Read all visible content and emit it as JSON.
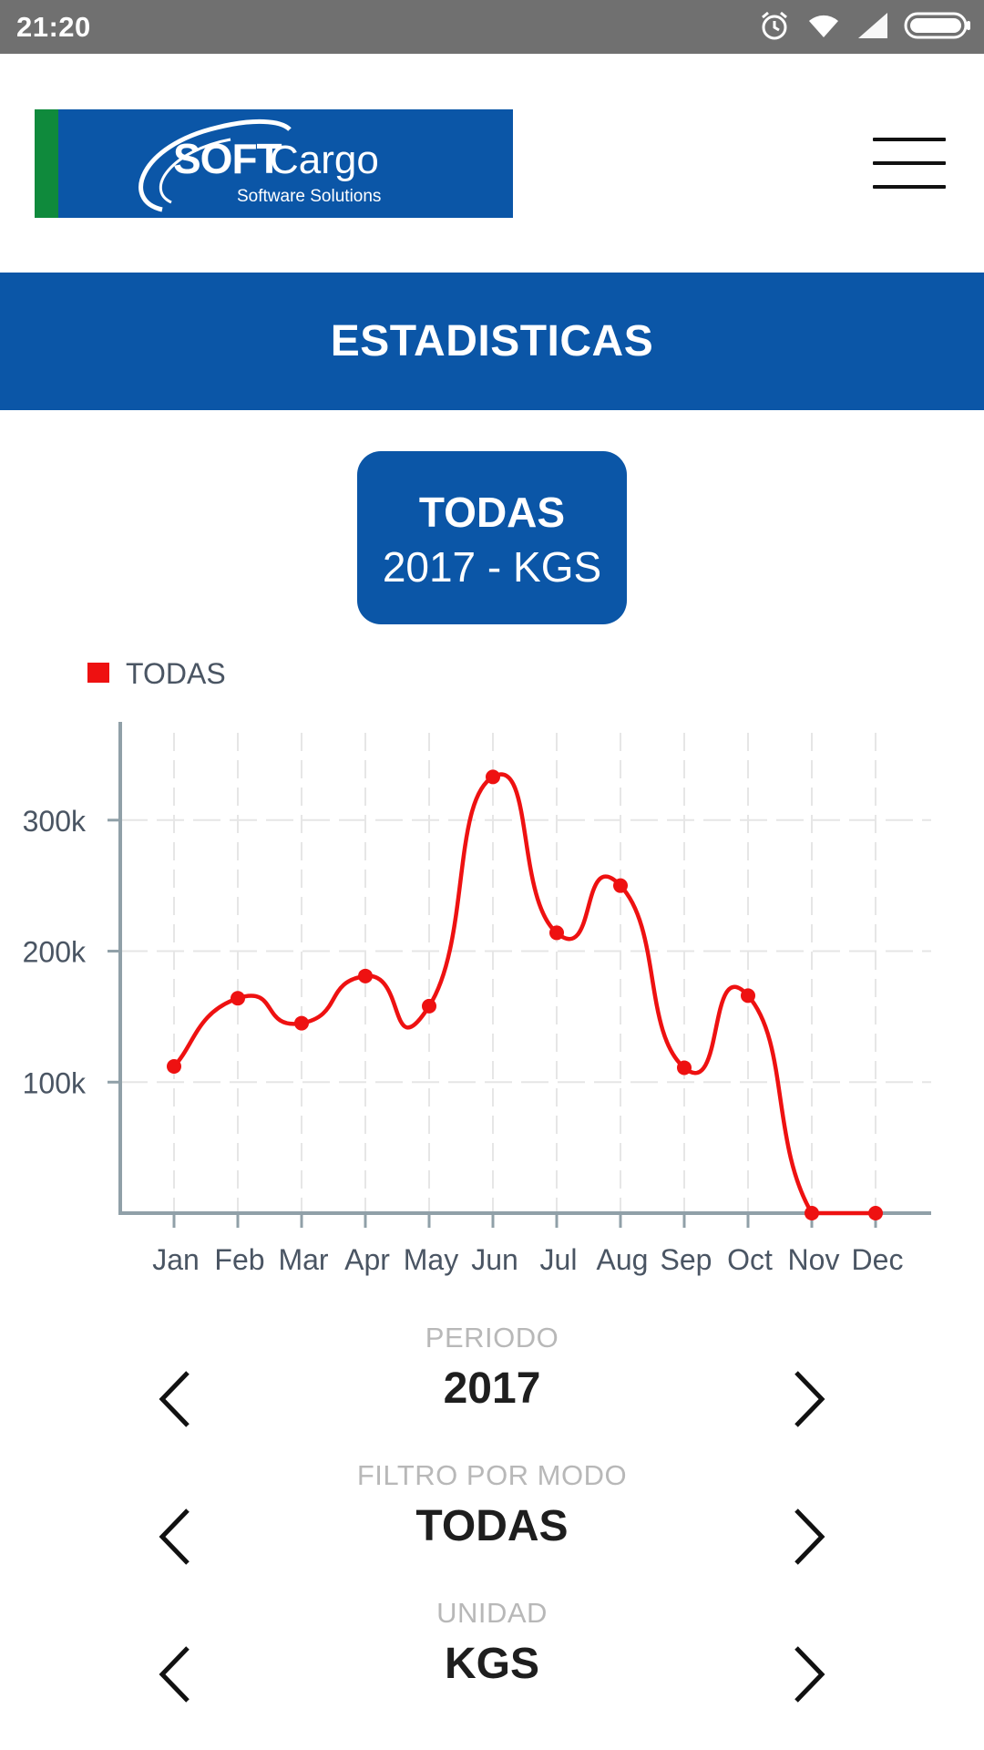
{
  "status_bar": {
    "time": "21:20",
    "icons": [
      "alarm-icon",
      "wifi-icon",
      "signal-icon",
      "battery-icon"
    ]
  },
  "header": {
    "logo_text": "SOFTCargo Software Solutions",
    "menu_icon": "hamburger-menu-icon"
  },
  "page": {
    "title": "ESTADISTICAS"
  },
  "summary": {
    "mode": "TODAS",
    "subtitle": "2017 - KGS"
  },
  "colors": {
    "brand_blue": "#0b56a7",
    "brand_green": "#0f8a3c",
    "series_red": "#ee1111",
    "axis_gray": "#90a0a8",
    "grid_gray": "#e6e6e6"
  },
  "chart_data": {
    "type": "line",
    "categories": [
      "Jan",
      "Feb",
      "Mar",
      "Apr",
      "May",
      "Jun",
      "Jul",
      "Aug",
      "Sep",
      "Oct",
      "Nov",
      "Dec"
    ],
    "series": [
      {
        "name": "TODAS",
        "color": "#ee1111",
        "values": [
          112000,
          164000,
          145000,
          181000,
          158000,
          333000,
          214000,
          250000,
          111000,
          166000,
          0,
          0
        ]
      }
    ],
    "yticks": [
      100000,
      200000,
      300000
    ],
    "ytick_labels": [
      "100k",
      "200k",
      "300k"
    ],
    "ylim": [
      0,
      375000
    ],
    "legend_position": "top-left",
    "grid": true,
    "curve": "smooth"
  },
  "selectors": {
    "periodo": {
      "label": "PERIODO",
      "value": "2017"
    },
    "modo": {
      "label": "FILTRO POR MODO",
      "value": "TODAS"
    },
    "unidad": {
      "label": "UNIDAD",
      "value": "KGS"
    }
  }
}
